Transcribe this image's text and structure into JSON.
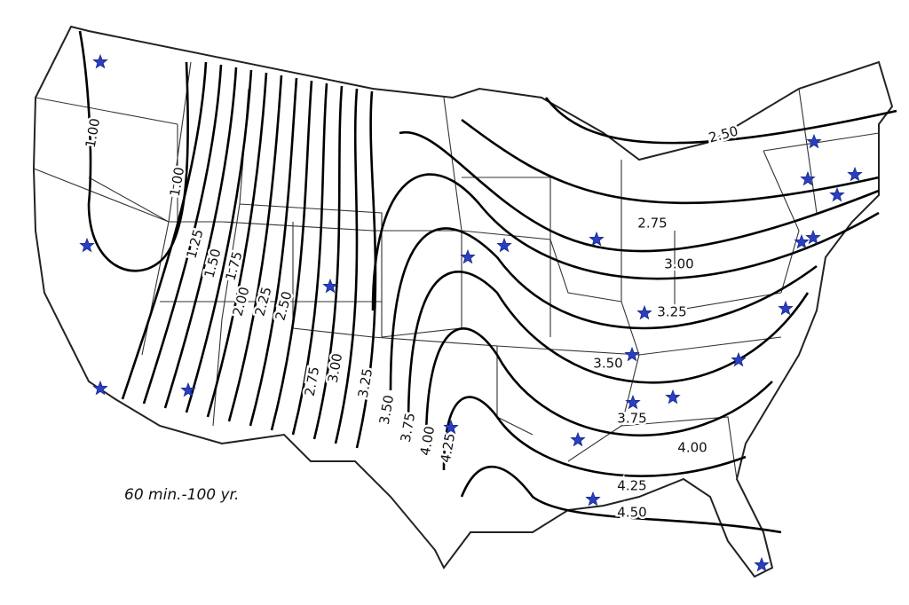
{
  "map": {
    "caption": "60 min.-100 yr.",
    "contour_labels": [
      "1.00",
      "1.00",
      "1.25",
      "1.50",
      "1.75",
      "2.00",
      "2.25",
      "2.50",
      "2.50",
      "2.75",
      "2.75",
      "3.00",
      "3.00",
      "3.25",
      "3.25",
      "3.50",
      "3.50",
      "3.75",
      "3.75",
      "4.00",
      "4.00",
      "4.25",
      "4.25",
      "4.50"
    ]
  }
}
